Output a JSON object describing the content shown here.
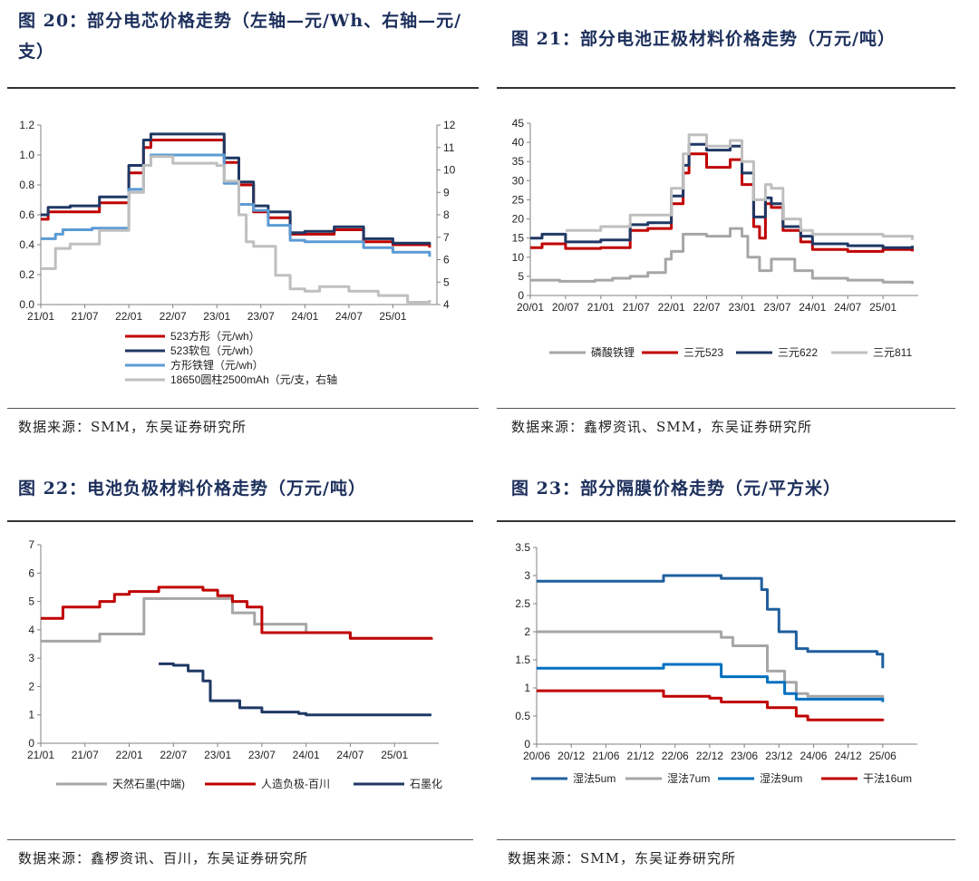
{
  "colors": {
    "red": "#c00000",
    "navy": "#1f3864",
    "lightblue": "#5b9bd5",
    "lightgray": "#bfbfbf",
    "gray": "#a6a6a6",
    "blue": "#0070c0",
    "darkblue": "#1f5f9e",
    "steelblue": "#2e75b6"
  },
  "charts": [
    {
      "title": "图 20：部分电芯价格走势（左轴—元/Wh、右轴—元/支）",
      "source": "数据来源：SMM，东吴证券研究所",
      "chart_data": {
        "type": "line",
        "x_ticks": [
          "21/01",
          "21/07",
          "22/01",
          "22/07",
          "23/01",
          "23/07",
          "24/01",
          "24/07",
          "25/01"
        ],
        "ylim_left": [
          0,
          1.2
        ],
        "yticks_left": [
          "0.0",
          "0.2",
          "0.4",
          "0.6",
          "0.8",
          "1.0",
          "1.2"
        ],
        "ylim_right": [
          4,
          12
        ],
        "yticks_right": [
          "4",
          "5",
          "6",
          "7",
          "8",
          "9",
          "10",
          "11",
          "12"
        ],
        "series": [
          {
            "name": "523方形（元/wh）",
            "color": "#c00000",
            "axis": "left",
            "x": [
              "21/01",
              "21/02",
              "21/05",
              "21/09",
              "22/01",
              "22/03",
              "22/04",
              "22/12",
              "23/02",
              "23/04",
              "23/06",
              "23/08",
              "23/11",
              "24/01",
              "24/05",
              "24/09",
              "25/01",
              "25/06"
            ],
            "y": [
              0.57,
              0.62,
              0.62,
              0.68,
              0.88,
              1.05,
              1.1,
              1.1,
              0.95,
              0.8,
              0.62,
              0.58,
              0.47,
              0.47,
              0.5,
              0.42,
              0.4,
              0.38
            ]
          },
          {
            "name": "523软包（元/wh）",
            "color": "#1f3864",
            "axis": "left",
            "x": [
              "21/01",
              "21/02",
              "21/05",
              "21/09",
              "22/01",
              "22/03",
              "22/04",
              "22/12",
              "23/02",
              "23/04",
              "23/06",
              "23/08",
              "23/11",
              "24/01",
              "24/05",
              "24/09",
              "25/01",
              "25/06"
            ],
            "y": [
              0.6,
              0.65,
              0.66,
              0.72,
              0.93,
              1.1,
              1.14,
              1.14,
              0.98,
              0.82,
              0.66,
              0.62,
              0.48,
              0.49,
              0.52,
              0.44,
              0.41,
              0.4
            ]
          },
          {
            "name": "方形铁锂（元/wh）",
            "color": "#5b9bd5",
            "axis": "left",
            "x": [
              "21/01",
              "21/03",
              "21/04",
              "21/08",
              "22/01",
              "22/03",
              "22/04",
              "22/12",
              "23/02",
              "23/04",
              "23/06",
              "23/08",
              "23/11",
              "24/01",
              "24/05",
              "24/09",
              "25/01",
              "25/06"
            ],
            "y": [
              0.44,
              0.47,
              0.5,
              0.51,
              0.77,
              0.93,
              1.0,
              1.0,
              0.81,
              0.67,
              0.63,
              0.53,
              0.43,
              0.42,
              0.42,
              0.38,
              0.35,
              0.32
            ]
          },
          {
            "name": "18650圆柱2500mAh（元/支，右轴",
            "color": "#bfbfbf",
            "axis": "right",
            "x": [
              "21/01",
              "21/03",
              "21/05",
              "21/09",
              "22/01",
              "22/03",
              "22/04",
              "22/07",
              "23/01",
              "23/02",
              "23/04",
              "23/05",
              "23/06",
              "23/09",
              "23/11",
              "24/01",
              "24/03",
              "24/05",
              "24/07",
              "24/11",
              "25/03",
              "25/06"
            ],
            "y": [
              5.6,
              6.5,
              6.7,
              7.3,
              9.0,
              10.2,
              10.6,
              10.3,
              10.2,
              9.5,
              8.0,
              6.8,
              6.6,
              5.3,
              4.7,
              4.6,
              4.8,
              4.8,
              4.6,
              4.4,
              4.1,
              4.2
            ]
          }
        ]
      }
    },
    {
      "title": "图 21：部分电池正极材料价格走势（万元/吨）",
      "source": "数据来源：鑫椤资讯、SMM，东吴证券研究所",
      "chart_data": {
        "type": "line",
        "x_ticks": [
          "20/01",
          "20/07",
          "21/01",
          "21/07",
          "22/01",
          "22/07",
          "23/01",
          "23/07",
          "24/01",
          "24/07",
          "25/01"
        ],
        "ylim": [
          0,
          45
        ],
        "yticks": [
          "0",
          "5",
          "10",
          "15",
          "20",
          "25",
          "30",
          "35",
          "40",
          "45"
        ],
        "series": [
          {
            "name": "磷酸铁锂",
            "color": "#a6a6a6",
            "x": [
              "20/01",
              "20/06",
              "20/12",
              "21/03",
              "21/06",
              "21/09",
              "21/12",
              "22/01",
              "22/03",
              "22/07",
              "22/11",
              "23/01",
              "23/02",
              "23/04",
              "23/06",
              "23/08",
              "23/10",
              "24/01",
              "24/07",
              "25/01",
              "25/06"
            ],
            "y": [
              4,
              3.7,
              4,
              4.5,
              5,
              6,
              9.5,
              11.5,
              16,
              15.5,
              17.5,
              15.5,
              10,
              6.5,
              9.5,
              9.5,
              6.5,
              4.5,
              4,
              3.5,
              3
            ]
          },
          {
            "name": "三元523",
            "color": "#c00000",
            "x": [
              "20/01",
              "20/03",
              "20/07",
              "21/01",
              "21/06",
              "21/09",
              "22/01",
              "22/03",
              "22/04",
              "22/07",
              "22/11",
              "23/01",
              "23/03",
              "23/04",
              "23/05",
              "23/06",
              "23/08",
              "23/11",
              "24/01",
              "24/07",
              "25/01",
              "25/06"
            ],
            "y": [
              12.5,
              13.5,
              12.3,
              12.5,
              17,
              17.5,
              24,
              32,
              37,
              33.5,
              35.5,
              29,
              18,
              15,
              24,
              23,
              17,
              14,
              12,
              11.5,
              12,
              11.5
            ]
          },
          {
            "name": "三元622",
            "color": "#1f3864",
            "x": [
              "20/01",
              "20/03",
              "20/07",
              "21/01",
              "21/06",
              "21/09",
              "22/01",
              "22/03",
              "22/04",
              "22/07",
              "22/11",
              "23/01",
              "23/03",
              "23/05",
              "23/06",
              "23/08",
              "23/11",
              "24/01",
              "24/07",
              "25/01",
              "25/06"
            ],
            "y": [
              15,
              16,
              14,
              14.5,
              18.5,
              19,
              26,
              34,
              39.5,
              38,
              39,
              32,
              20.5,
              25.5,
              24,
              18,
              15.5,
              13.5,
              13,
              12.5,
              13
            ]
          },
          {
            "name": "三元811",
            "color": "#bfbfbf",
            "x": [
              "20/07",
              "21/01",
              "21/06",
              "21/09",
              "22/01",
              "22/03",
              "22/04",
              "22/07",
              "22/11",
              "23/01",
              "23/03",
              "23/05",
              "23/06",
              "23/08",
              "23/11",
              "24/01",
              "24/07",
              "25/01",
              "25/06"
            ],
            "y": [
              17,
              18,
              21,
              21,
              28,
              37,
              42,
              39,
              40.5,
              35,
              25,
              29,
              28,
              20,
              17,
              16,
              16,
              15.5,
              14.5
            ]
          }
        ]
      }
    },
    {
      "title": "图 22：电池负极材料价格走势（万元/吨）",
      "source": "数据来源：鑫椤资讯、百川，东吴证券研究所",
      "chart_data": {
        "type": "line",
        "x_ticks": [
          "21/01",
          "21/07",
          "22/01",
          "22/07",
          "23/01",
          "23/07",
          "24/01",
          "24/07",
          "25/01"
        ],
        "ylim": [
          0,
          7
        ],
        "yticks": [
          "0",
          "1",
          "2",
          "3",
          "4",
          "5",
          "6",
          "7"
        ],
        "series": [
          {
            "name": "天然石墨(中端)",
            "color": "#a6a6a6",
            "x": [
              "21/01",
              "21/06",
              "21/09",
              "22/02",
              "22/03",
              "22/12",
              "23/03",
              "23/06",
              "24/01",
              "24/07",
              "25/06"
            ],
            "y": [
              3.6,
              3.6,
              3.85,
              3.85,
              5.1,
              5.1,
              4.6,
              4.2,
              3.9,
              3.7,
              3.65
            ]
          },
          {
            "name": "人造负极-百川",
            "color": "#c00000",
            "x": [
              "21/01",
              "21/03",
              "21/04",
              "21/09",
              "21/11",
              "22/01",
              "22/05",
              "22/11",
              "23/01",
              "23/03",
              "23/05",
              "23/07",
              "24/07",
              "25/06"
            ],
            "y": [
              4.4,
              4.4,
              4.8,
              5.0,
              5.25,
              5.35,
              5.5,
              5.4,
              5.2,
              5.0,
              4.8,
              3.9,
              3.7,
              3.65
            ]
          },
          {
            "name": "石墨化",
            "color": "#1f3864",
            "x": [
              "22/05",
              "22/07",
              "22/09",
              "22/11",
              "22/12",
              "23/01",
              "23/04",
              "23/07",
              "23/12",
              "24/01",
              "25/06"
            ],
            "y": [
              2.8,
              2.75,
              2.55,
              2.2,
              1.5,
              1.5,
              1.25,
              1.1,
              1.05,
              1.0,
              1.0
            ]
          }
        ]
      }
    },
    {
      "title": "图 23：部分隔膜价格走势（元/平方米）",
      "source": "数据来源：SMM，东吴证券研究所",
      "chart_data": {
        "type": "line",
        "x_ticks": [
          "20/06",
          "20/12",
          "21/06",
          "21/12",
          "22/06",
          "22/12",
          "23/06",
          "23/12",
          "24/06",
          "24/12",
          "25/06"
        ],
        "ylim": [
          0,
          3.5
        ],
        "yticks": [
          "0",
          "0.5",
          "1",
          "1.5",
          "2",
          "2.5",
          "3",
          "3.5"
        ],
        "series": [
          {
            "name": "湿法5um",
            "color": "#1f5f9e",
            "x": [
              "20/06",
              "22/03",
              "22/04",
              "22/12",
              "23/02",
              "23/09",
              "23/10",
              "23/12",
              "24/03",
              "24/05",
              "25/05",
              "25/06"
            ],
            "y": [
              2.9,
              2.9,
              3.0,
              3.0,
              2.95,
              2.75,
              2.4,
              2.0,
              1.7,
              1.65,
              1.6,
              1.35
            ]
          },
          {
            "name": "湿法7um",
            "color": "#a6a6a6",
            "x": [
              "20/06",
              "22/12",
              "23/02",
              "23/04",
              "23/09",
              "23/10",
              "24/01",
              "24/03",
              "24/05",
              "25/06"
            ],
            "y": [
              2.0,
              2.0,
              1.9,
              1.75,
              1.75,
              1.3,
              1.1,
              0.9,
              0.85,
              0.8
            ]
          },
          {
            "name": "湿法9um",
            "color": "#0070c0",
            "x": [
              "20/06",
              "22/03",
              "22/04",
              "22/12",
              "23/02",
              "23/09",
              "23/10",
              "24/01",
              "24/03",
              "25/06"
            ],
            "y": [
              1.35,
              1.35,
              1.42,
              1.42,
              1.2,
              1.2,
              1.1,
              0.9,
              0.8,
              0.75
            ]
          },
          {
            "name": "干法16um",
            "color": "#c00000",
            "x": [
              "20/06",
              "22/03",
              "22/04",
              "22/12",
              "23/02",
              "23/09",
              "23/10",
              "24/03",
              "24/05",
              "25/06"
            ],
            "y": [
              0.95,
              0.95,
              0.85,
              0.82,
              0.75,
              0.75,
              0.65,
              0.5,
              0.43,
              0.45
            ]
          }
        ]
      }
    }
  ]
}
